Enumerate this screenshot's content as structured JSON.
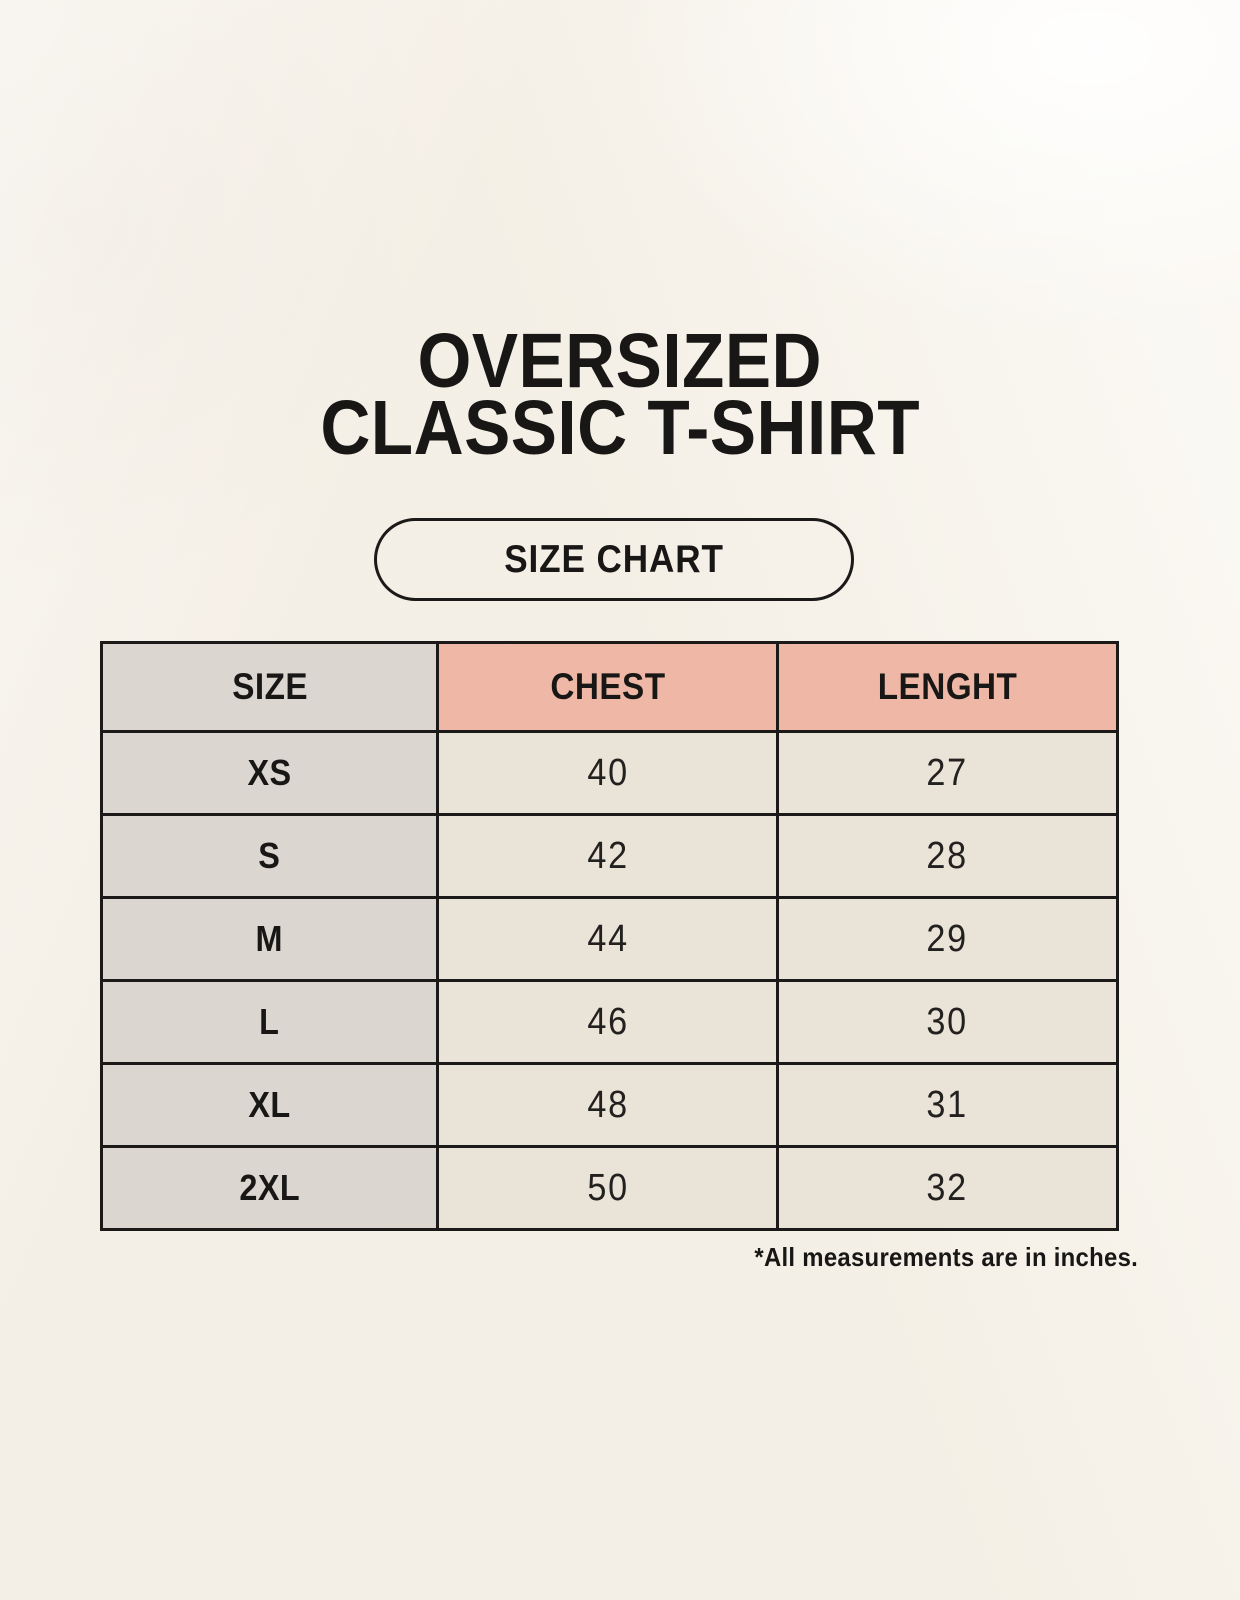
{
  "colors": {
    "bg": "#f7f3ea",
    "ink": "#181716",
    "border": "#1c1a18",
    "pink": "#efb8a6",
    "gray": "#dcd6d1",
    "cream": "#eae3d7"
  },
  "header": {
    "title_line1": "OVERSIZED",
    "title_line2": "CLASSIC T-SHIRT",
    "size_chart_label": "SIZE CHART"
  },
  "chart_data": {
    "type": "table",
    "title": "OVERSIZED CLASSIC T-SHIRT",
    "subtitle_badge": "SIZE CHART",
    "columns": [
      "SIZE",
      "CHEST",
      "LENGHT"
    ],
    "rows": [
      [
        "XS",
        "40",
        "27"
      ],
      [
        "S",
        "42",
        "28"
      ],
      [
        "M",
        "44",
        "29"
      ],
      [
        "L",
        "46",
        "30"
      ],
      [
        "XL",
        "48",
        "31"
      ],
      [
        "2XL",
        "50",
        "32"
      ]
    ],
    "footnote": "*All measurements are in inches."
  }
}
